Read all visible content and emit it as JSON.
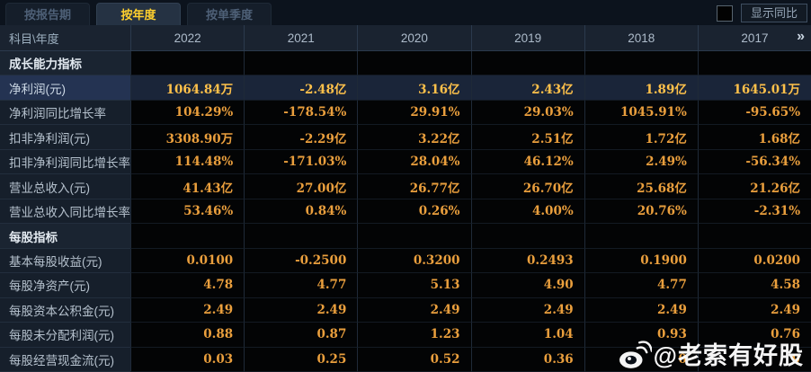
{
  "tabs": [
    {
      "label": "按报告期",
      "active": false
    },
    {
      "label": "按年度",
      "active": true
    },
    {
      "label": "按单季度",
      "active": false
    }
  ],
  "controls": {
    "show_yoy_label": "显示同比",
    "checkbox_checked": false
  },
  "table": {
    "corner_label": "科目\\年度",
    "years": [
      "2022",
      "2021",
      "2020",
      "2019",
      "2018",
      "2017"
    ],
    "more_years_icon": "»",
    "rows": [
      {
        "type": "section",
        "label": "成长能力指标",
        "values": [
          "",
          "",
          "",
          "",
          "",
          ""
        ]
      },
      {
        "type": "highlight",
        "label": "净利润(元)",
        "values": [
          "1064.84万",
          "-2.48亿",
          "3.16亿",
          "2.43亿",
          "1.89亿",
          "1645.01万"
        ]
      },
      {
        "type": "data",
        "label": "净利润同比增长率",
        "values": [
          "104.29%",
          "-178.54%",
          "29.91%",
          "29.03%",
          "1045.91%",
          "-95.65%"
        ]
      },
      {
        "type": "data",
        "label": "扣非净利润(元)",
        "values": [
          "3308.90万",
          "-2.29亿",
          "3.22亿",
          "2.51亿",
          "1.72亿",
          "1.68亿"
        ]
      },
      {
        "type": "data",
        "label": "扣非净利润同比增长率",
        "values": [
          "114.48%",
          "-171.03%",
          "28.04%",
          "46.12%",
          "2.49%",
          "-56.34%"
        ]
      },
      {
        "type": "data",
        "label": "营业总收入(元)",
        "values": [
          "41.43亿",
          "27.00亿",
          "26.77亿",
          "26.70亿",
          "25.68亿",
          "21.26亿"
        ]
      },
      {
        "type": "data",
        "label": "营业总收入同比增长率",
        "values": [
          "53.46%",
          "0.84%",
          "0.26%",
          "4.00%",
          "20.76%",
          "-2.31%"
        ]
      },
      {
        "type": "section",
        "label": "每股指标",
        "values": [
          "",
          "",
          "",
          "",
          "",
          ""
        ]
      },
      {
        "type": "data",
        "label": "基本每股收益(元)",
        "values": [
          "0.0100",
          "-0.2500",
          "0.3200",
          "0.2493",
          "0.1900",
          "0.0200"
        ]
      },
      {
        "type": "data",
        "label": "每股净资产(元)",
        "values": [
          "4.78",
          "4.77",
          "5.13",
          "4.90",
          "4.77",
          "4.58"
        ]
      },
      {
        "type": "data",
        "label": "每股资本公积金(元)",
        "values": [
          "2.49",
          "2.49",
          "2.49",
          "2.49",
          "2.49",
          "2.49"
        ]
      },
      {
        "type": "data",
        "label": "每股未分配利润(元)",
        "values": [
          "0.88",
          "0.87",
          "1.23",
          "1.04",
          "0.93",
          "0.76"
        ]
      },
      {
        "type": "data",
        "label": "每股经营现金流(元)",
        "values": [
          "0.03",
          "0.25",
          "0.52",
          "0.36",
          "0",
          "9"
        ]
      }
    ]
  },
  "watermark": {
    "icon": "weibo-icon",
    "text": "@老索有好股"
  },
  "colors": {
    "value_orange": "#ea9f3d",
    "highlight_gold": "#ffc14a",
    "active_tab_gold": "#ffd02e",
    "panel_navy": "#1a2330",
    "cell_black": "#030405"
  }
}
